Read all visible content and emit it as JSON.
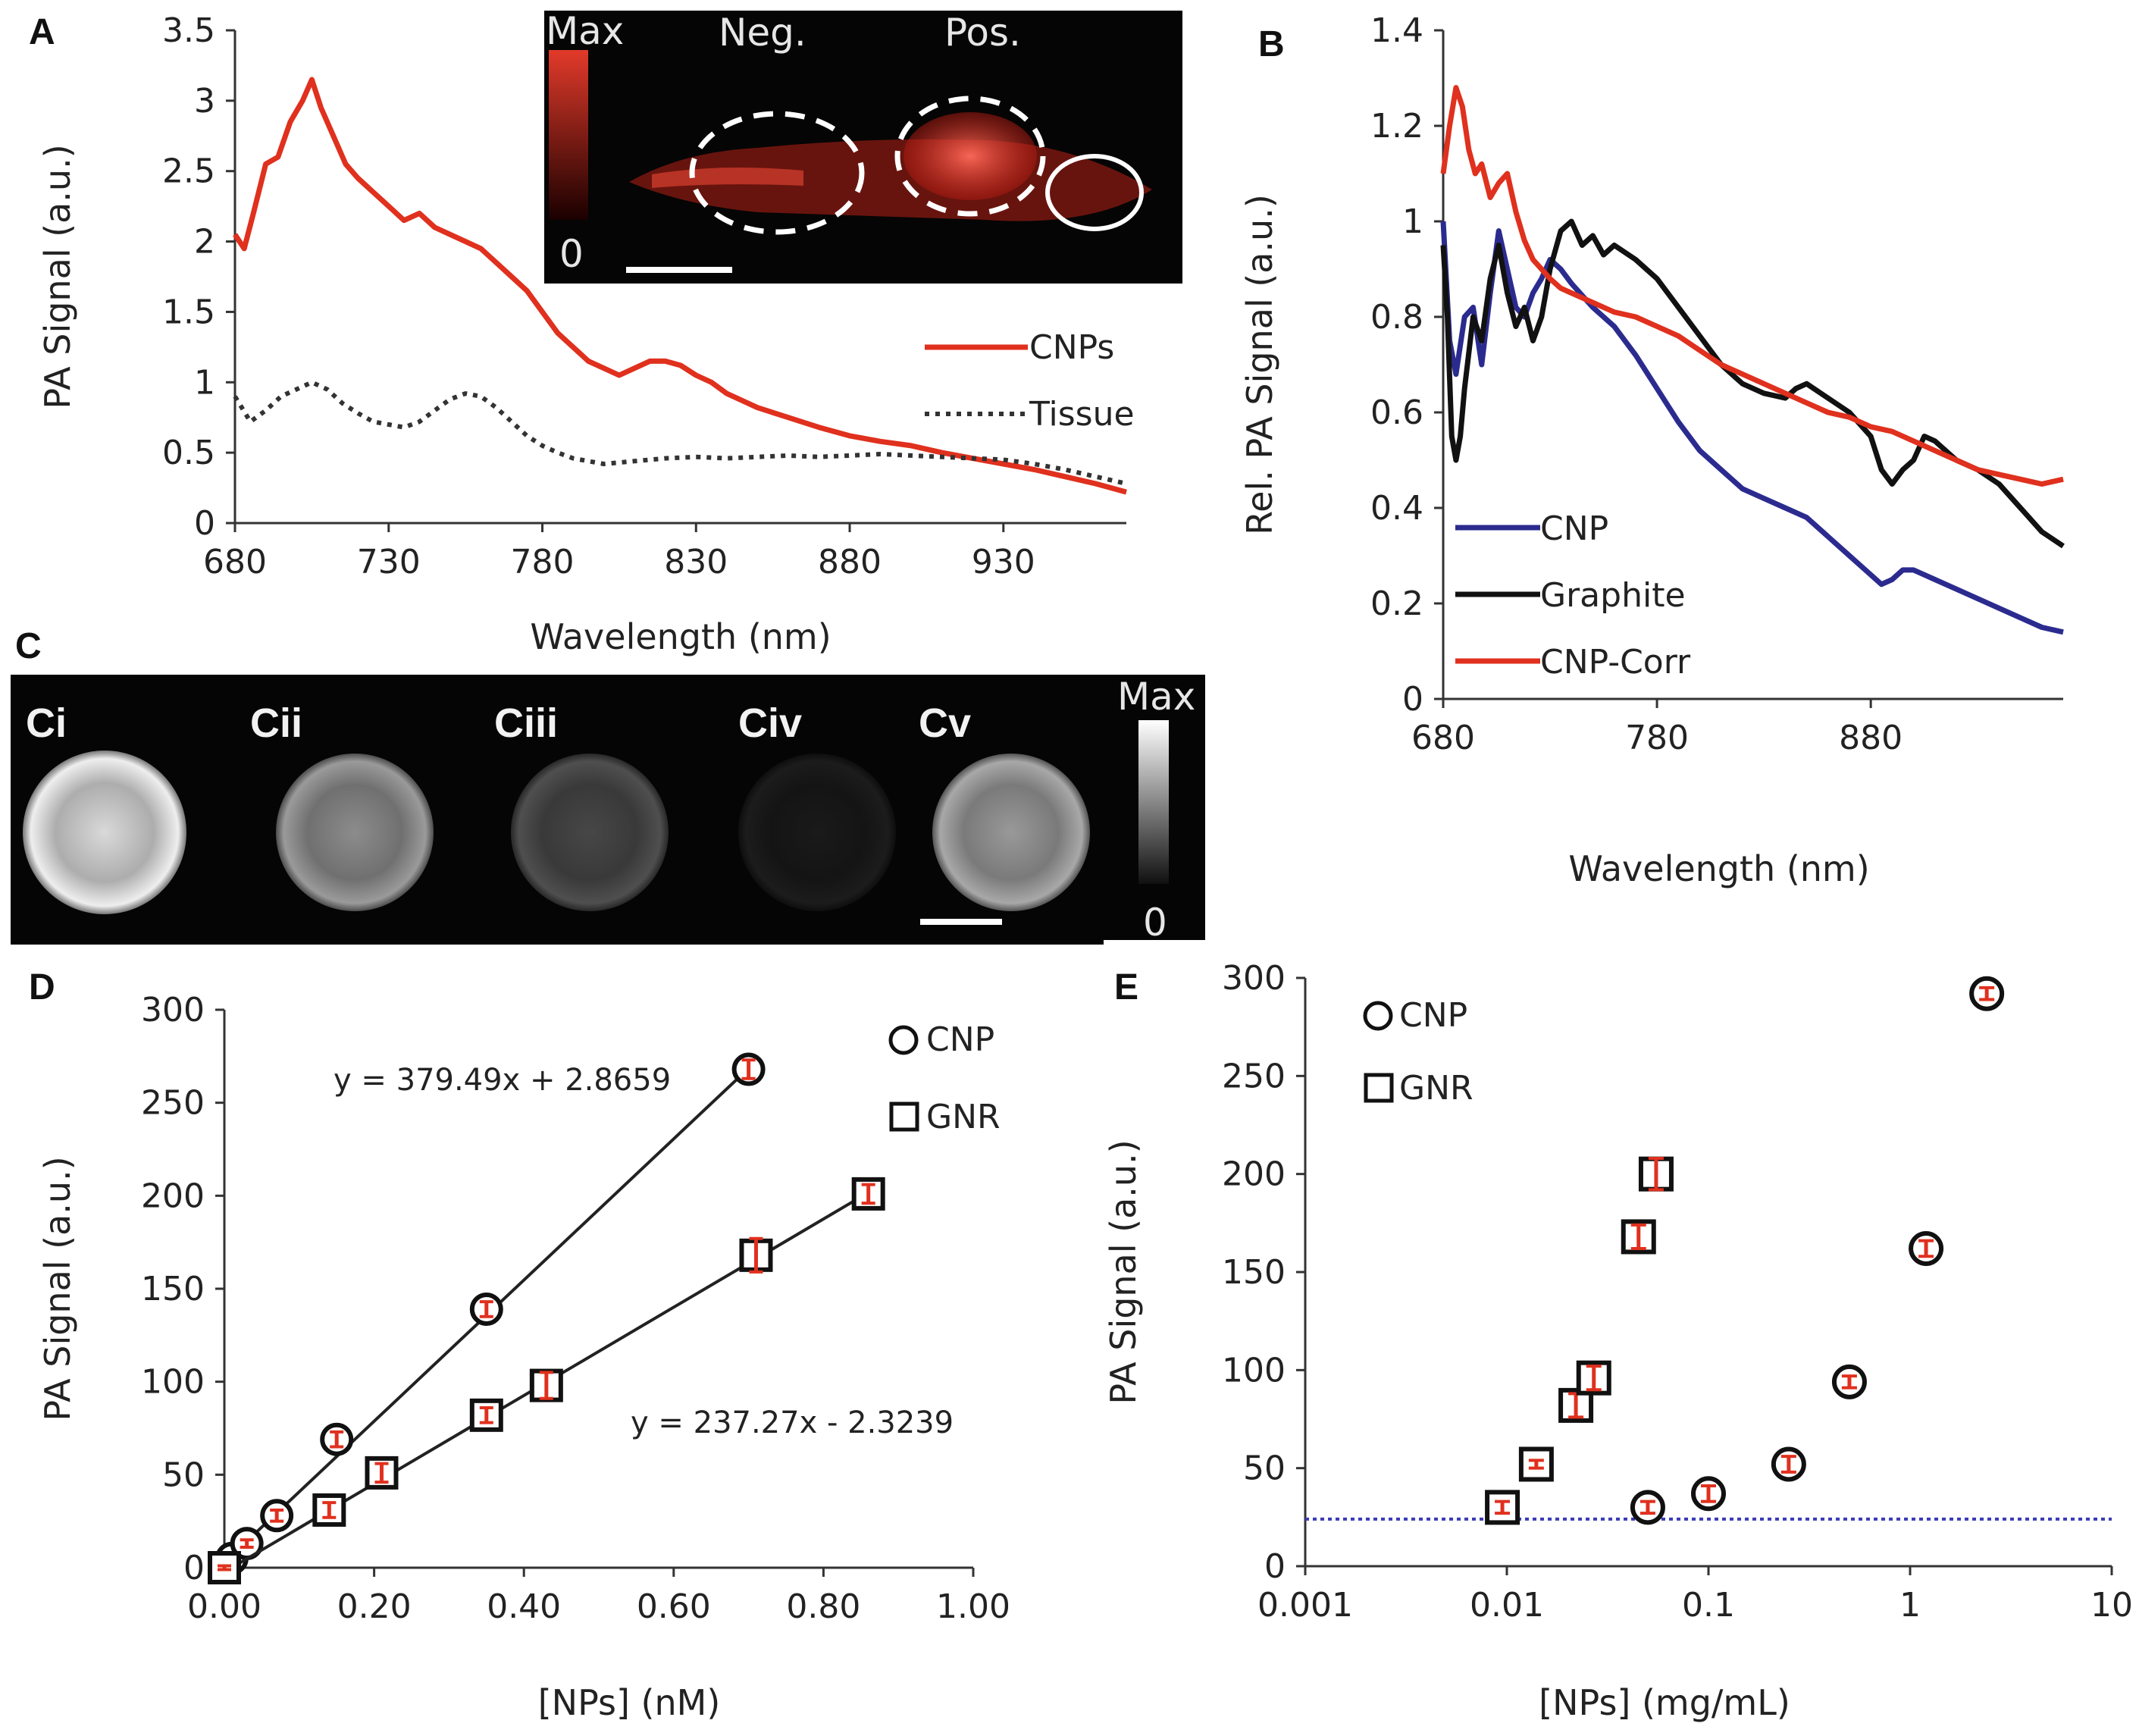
{
  "colors": {
    "cnp_red": "#e0301e",
    "tissue_dotted": "#333333",
    "cnp_blue": "#2b2b8f",
    "graphite_black": "#111111",
    "threshold_blue": "#3a3ab8",
    "errorbar_red": "#e0301e"
  },
  "panel_A": {
    "letter": "A",
    "inset": {
      "max_label": "Max",
      "zero_label": "0",
      "neg_label": "Neg.",
      "pos_label": "Pos."
    },
    "chart_data": {
      "type": "line",
      "title": "",
      "xlabel": "Wavelength (nm)",
      "ylabel": "PA Signal (a.u.)",
      "xlim": [
        680,
        970
      ],
      "ylim": [
        0,
        3.5
      ],
      "x_ticks": [
        "680",
        "730",
        "780",
        "830",
        "880",
        "930"
      ],
      "y_ticks": [
        "0",
        "0.5",
        "1",
        "1.5",
        "2",
        "2.5",
        "3",
        "3.5"
      ],
      "legend_position": "right",
      "series": [
        {
          "name": "CNPs",
          "style": "solid",
          "x": [
            680,
            683,
            686,
            690,
            694,
            698,
            702,
            705,
            708,
            712,
            716,
            720,
            725,
            730,
            735,
            740,
            745,
            750,
            755,
            760,
            765,
            770,
            775,
            780,
            785,
            790,
            795,
            800,
            805,
            810,
            815,
            820,
            825,
            830,
            835,
            840,
            850,
            860,
            870,
            880,
            890,
            900,
            910,
            920,
            930,
            940,
            950,
            960,
            970
          ],
          "y": [
            2.05,
            1.95,
            2.2,
            2.55,
            2.6,
            2.85,
            3.0,
            3.15,
            2.95,
            2.75,
            2.55,
            2.45,
            2.35,
            2.25,
            2.15,
            2.2,
            2.1,
            2.05,
            2.0,
            1.95,
            1.85,
            1.75,
            1.65,
            1.5,
            1.35,
            1.25,
            1.15,
            1.1,
            1.05,
            1.1,
            1.15,
            1.15,
            1.12,
            1.05,
            1.0,
            0.92,
            0.82,
            0.75,
            0.68,
            0.62,
            0.58,
            0.55,
            0.5,
            0.46,
            0.42,
            0.38,
            0.33,
            0.28,
            0.22
          ]
        },
        {
          "name": "Tissue",
          "style": "dotted",
          "x": [
            680,
            685,
            690,
            695,
            700,
            705,
            710,
            715,
            720,
            725,
            730,
            735,
            740,
            745,
            750,
            755,
            760,
            765,
            770,
            775,
            780,
            785,
            790,
            800,
            810,
            820,
            830,
            840,
            850,
            860,
            870,
            880,
            890,
            900,
            910,
            920,
            930,
            940,
            950,
            960,
            970
          ],
          "y": [
            0.9,
            0.72,
            0.8,
            0.9,
            0.95,
            1.0,
            0.95,
            0.85,
            0.78,
            0.72,
            0.7,
            0.68,
            0.72,
            0.8,
            0.88,
            0.92,
            0.9,
            0.82,
            0.72,
            0.62,
            0.55,
            0.5,
            0.46,
            0.42,
            0.44,
            0.46,
            0.47,
            0.46,
            0.47,
            0.48,
            0.47,
            0.48,
            0.49,
            0.48,
            0.47,
            0.46,
            0.45,
            0.42,
            0.38,
            0.33,
            0.28
          ]
        }
      ]
    }
  },
  "panel_B": {
    "letter": "B",
    "chart_data": {
      "type": "line",
      "title": "",
      "xlabel": "Wavelength (nm)",
      "ylabel": "Rel. PA Signal (a.u.)",
      "xlim": [
        680,
        970
      ],
      "ylim": [
        0,
        1.4
      ],
      "x_ticks": [
        "680",
        "780",
        "880"
      ],
      "y_ticks": [
        "0",
        "0.2",
        "0.4",
        "0.6",
        "0.8",
        "1",
        "1.2",
        "1.4"
      ],
      "legend_position": "bottom-left",
      "series": [
        {
          "name": "CNP",
          "x": [
            680,
            683,
            686,
            690,
            694,
            698,
            702,
            706,
            710,
            714,
            718,
            722,
            726,
            730,
            735,
            740,
            750,
            760,
            770,
            780,
            790,
            800,
            810,
            820,
            830,
            840,
            850,
            860,
            870,
            880,
            885,
            890,
            895,
            900,
            905,
            910,
            920,
            930,
            940,
            950,
            960,
            970
          ],
          "y": [
            1.0,
            0.75,
            0.68,
            0.8,
            0.82,
            0.7,
            0.85,
            0.98,
            0.9,
            0.82,
            0.8,
            0.85,
            0.88,
            0.92,
            0.9,
            0.87,
            0.82,
            0.78,
            0.72,
            0.65,
            0.58,
            0.52,
            0.48,
            0.44,
            0.42,
            0.4,
            0.38,
            0.34,
            0.3,
            0.26,
            0.24,
            0.25,
            0.27,
            0.27,
            0.26,
            0.25,
            0.23,
            0.21,
            0.19,
            0.17,
            0.15,
            0.14
          ]
        },
        {
          "name": "Graphite",
          "x": [
            680,
            682,
            684,
            686,
            688,
            690,
            694,
            698,
            702,
            706,
            710,
            714,
            718,
            722,
            726,
            730,
            735,
            740,
            745,
            750,
            755,
            760,
            770,
            780,
            790,
            800,
            810,
            820,
            830,
            840,
            845,
            850,
            860,
            870,
            880,
            885,
            890,
            895,
            900,
            905,
            910,
            920,
            930,
            940,
            950,
            960,
            970
          ],
          "y": [
            0.95,
            0.8,
            0.55,
            0.5,
            0.55,
            0.65,
            0.8,
            0.75,
            0.88,
            0.95,
            0.85,
            0.78,
            0.82,
            0.75,
            0.8,
            0.9,
            0.98,
            1.0,
            0.95,
            0.97,
            0.93,
            0.95,
            0.92,
            0.88,
            0.82,
            0.76,
            0.7,
            0.66,
            0.64,
            0.63,
            0.65,
            0.66,
            0.63,
            0.6,
            0.55,
            0.48,
            0.45,
            0.48,
            0.5,
            0.55,
            0.54,
            0.5,
            0.48,
            0.45,
            0.4,
            0.35,
            0.32
          ]
        },
        {
          "name": "CNP-Corr",
          "x": [
            680,
            683,
            686,
            689,
            692,
            695,
            698,
            702,
            706,
            710,
            714,
            718,
            722,
            726,
            730,
            735,
            740,
            750,
            760,
            770,
            780,
            790,
            800,
            810,
            820,
            830,
            840,
            850,
            860,
            870,
            880,
            890,
            900,
            910,
            920,
            930,
            940,
            950,
            960,
            970
          ],
          "y": [
            1.1,
            1.2,
            1.28,
            1.24,
            1.15,
            1.1,
            1.12,
            1.05,
            1.08,
            1.1,
            1.02,
            0.96,
            0.92,
            0.9,
            0.88,
            0.86,
            0.85,
            0.83,
            0.81,
            0.8,
            0.78,
            0.76,
            0.73,
            0.7,
            0.68,
            0.66,
            0.64,
            0.62,
            0.6,
            0.59,
            0.57,
            0.56,
            0.54,
            0.52,
            0.5,
            0.48,
            0.47,
            0.46,
            0.45,
            0.46
          ]
        }
      ]
    }
  },
  "panel_C": {
    "letter": "C",
    "labels": [
      "Ci",
      "Cii",
      "Ciii",
      "Civ",
      "Cv"
    ],
    "brightness": [
      0.85,
      0.55,
      0.28,
      0.1,
      0.6
    ],
    "colorbar_max": "Max",
    "colorbar_zero": "0"
  },
  "panel_D": {
    "letter": "D",
    "chart_data": {
      "type": "scatter",
      "title": "",
      "xlabel": "[NPs] (nM)",
      "ylabel": "PA Signal (a.u.)",
      "xlim": [
        0,
        1.0
      ],
      "ylim": [
        0,
        300
      ],
      "x_ticks": [
        "0.00",
        "0.20",
        "0.40",
        "0.60",
        "0.80",
        "1.00"
      ],
      "y_ticks": [
        "0",
        "50",
        "100",
        "150",
        "200",
        "250",
        "300"
      ],
      "legend_position": "top-right",
      "series": [
        {
          "name": "CNP",
          "marker": "circle",
          "x": [
            0.0,
            0.01,
            0.03,
            0.07,
            0.15,
            0.35,
            0.7
          ],
          "y": [
            1,
            5,
            13,
            28,
            69,
            139,
            268
          ],
          "err": [
            1,
            1,
            2,
            3,
            4,
            4,
            5
          ],
          "fit_label": "y = 379.49x + 2.8659",
          "slope": 379.49,
          "intercept": 2.8659
        },
        {
          "name": "GNR",
          "marker": "square",
          "x": [
            0.0,
            0.14,
            0.21,
            0.35,
            0.43,
            0.71,
            0.86
          ],
          "y": [
            0,
            31,
            51,
            82,
            98,
            168,
            201
          ],
          "err": [
            1,
            4,
            5,
            4,
            7,
            9,
            5
          ],
          "fit_label": "y = 237.27x - 2.3239",
          "slope": 237.27,
          "intercept": -2.3239
        }
      ]
    }
  },
  "panel_E": {
    "letter": "E",
    "chart_data": {
      "type": "scatter",
      "title": "",
      "xlabel": "[NPs] (mg/mL)",
      "ylabel": "PA Signal (a.u.)",
      "x_scale": "log",
      "xlim": [
        0.001,
        10
      ],
      "ylim": [
        0,
        300
      ],
      "x_ticks": [
        "0.001",
        "0.01",
        "0.1",
        "1",
        "10"
      ],
      "y_ticks": [
        "0",
        "50",
        "100",
        "150",
        "200",
        "250",
        "300"
      ],
      "threshold_y": 24,
      "legend_position": "top-left",
      "series": [
        {
          "name": "CNP",
          "marker": "circle",
          "x": [
            0.05,
            0.1,
            0.25,
            0.5,
            1.2,
            2.4
          ],
          "y": [
            30,
            37,
            52,
            94,
            162,
            292
          ],
          "err": [
            3,
            4,
            4,
            3,
            4,
            3
          ]
        },
        {
          "name": "GNR",
          "marker": "square",
          "x": [
            0.0095,
            0.014,
            0.022,
            0.027,
            0.045,
            0.055
          ],
          "y": [
            30,
            52,
            82,
            96,
            168,
            200
          ],
          "err": [
            3,
            2,
            6,
            6,
            6,
            8
          ]
        }
      ]
    }
  }
}
